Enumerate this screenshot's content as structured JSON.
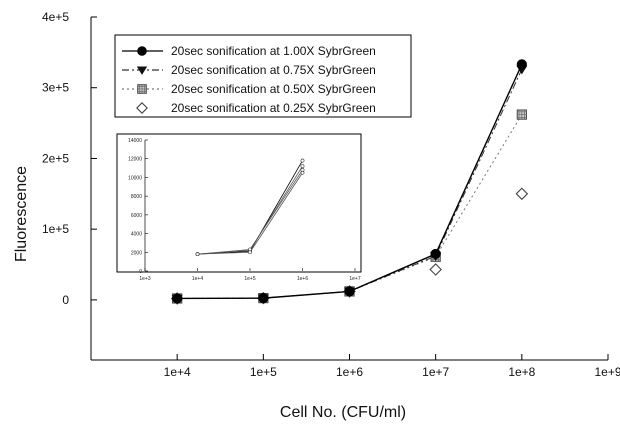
{
  "chart_data": [
    {
      "type": "line",
      "xlabel": "Cell No. (CFU/ml)",
      "ylabel": "Fluorescence",
      "x_scale": "log",
      "x_ticks": [
        "1e+4",
        "1e+5",
        "1e+6",
        "1e+7",
        "1e+8",
        "1e+9"
      ],
      "y_ticks": [
        "0",
        "1e+5",
        "2e+5",
        "3e+5",
        "4e+5"
      ],
      "xlim": [
        1000,
        1000000000
      ],
      "ylim": [
        -85000,
        400000
      ],
      "grid": false,
      "legend_position": "top-left",
      "x": [
        10000,
        100000,
        1000000,
        10000000,
        100000000
      ],
      "series": [
        {
          "name": "20sec sonification at 1.00X SybrGreen",
          "marker": "filled-circle",
          "line": "solid",
          "color": "#000000",
          "values": [
            2000,
            2500,
            12000,
            65000,
            333000
          ]
        },
        {
          "name": "20sec sonification at 0.75X SybrGreen",
          "marker": "filled-triangle-down",
          "line": "dash-dot",
          "color": "#333333",
          "values": [
            2000,
            2500,
            12000,
            62000,
            326000
          ]
        },
        {
          "name": "20sec sonification at 0.50X SybrGreen",
          "marker": "hatched-square",
          "line": "dotted",
          "color": "#777777",
          "values": [
            2000,
            2500,
            12000,
            61000,
            262000
          ]
        },
        {
          "name": "20sec sonification at 0.25X SybrGreen",
          "marker": "open-diamond",
          "line": "none",
          "color": "#555555",
          "values": [
            2000,
            2500,
            12000,
            43000,
            150000
          ]
        }
      ]
    },
    {
      "type": "line",
      "x_scale": "log",
      "x_ticks": [
        "1e+3",
        "1e+4",
        "1e+5",
        "1e+6",
        "1e+7"
      ],
      "y_ticks": [
        "0",
        "2000",
        "4000",
        "6000",
        "8000",
        "10000",
        "12000",
        "14000"
      ],
      "xlim": [
        1000,
        10000000
      ],
      "ylim": [
        0,
        14000
      ],
      "x": [
        10000,
        100000,
        1000000
      ],
      "series": [
        {
          "values": [
            1800,
            2100,
            11800
          ]
        },
        {
          "values": [
            1800,
            2200,
            11200
          ]
        },
        {
          "values": [
            1800,
            2300,
            10800
          ]
        },
        {
          "values": [
            1800,
            2000,
            10500
          ]
        }
      ]
    }
  ]
}
